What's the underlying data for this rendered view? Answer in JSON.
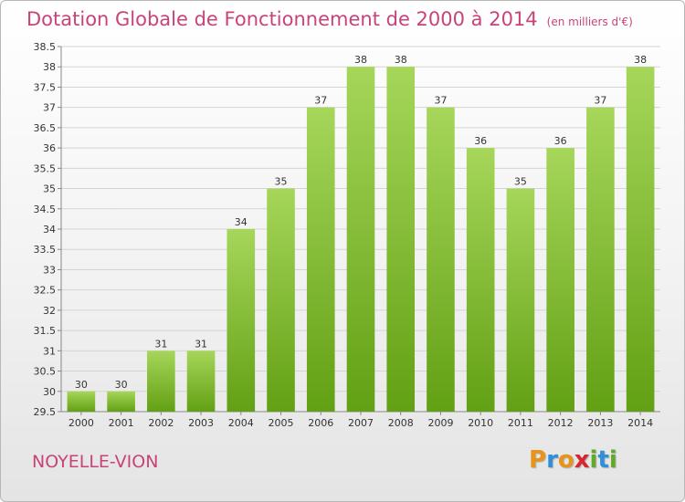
{
  "header": {
    "title": "Dotation Globale de Fonctionnement de 2000 à 2014",
    "unit": "(en milliers d'€)"
  },
  "footer": {
    "commune": "NOYELLE-VION",
    "logo_letters": [
      "P",
      "r",
      "o",
      "x",
      "i",
      "t",
      "i"
    ],
    "logo_colors": [
      "#e8941a",
      "#2f8fd8",
      "#e8941a",
      "#d8262f",
      "#62a82a",
      "#2f8fd8",
      "#62a82a"
    ]
  },
  "chart_data": {
    "type": "bar",
    "categories": [
      "2000",
      "2001",
      "2002",
      "2003",
      "2004",
      "2005",
      "2006",
      "2007",
      "2008",
      "2009",
      "2010",
      "2011",
      "2012",
      "2013",
      "2014"
    ],
    "values": [
      30,
      30,
      31,
      31,
      34,
      35,
      37,
      38,
      38,
      37,
      36,
      35,
      36,
      37,
      38
    ],
    "data_labels": [
      "30",
      "30",
      "31",
      "31",
      "34",
      "35",
      "37",
      "38",
      "38",
      "37",
      "36",
      "35",
      "36",
      "37",
      "38"
    ],
    "ylim": [
      29.5,
      38.5
    ],
    "yticks": [
      "29.5",
      "30",
      "30.5",
      "31",
      "31.5",
      "32",
      "32.5",
      "33",
      "33.5",
      "34",
      "34.5",
      "35",
      "35.5",
      "36",
      "36.5",
      "37",
      "37.5",
      "38",
      "38.5"
    ],
    "title": "Dotation Globale de Fonctionnement de 2000 à 2014",
    "xlabel": "",
    "ylabel": "",
    "grid": true,
    "bar_color_top": "#a6d65a",
    "bar_color_bottom": "#62a014"
  }
}
